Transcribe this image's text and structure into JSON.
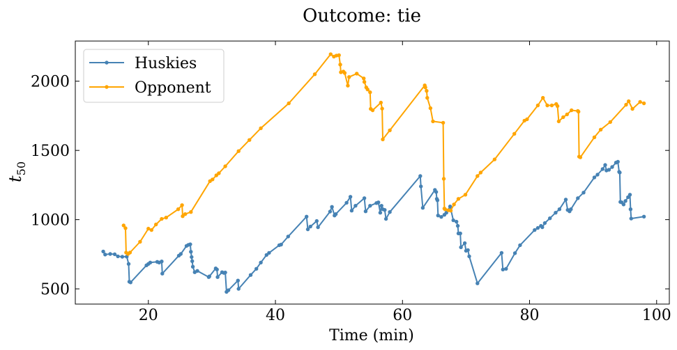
{
  "chart_data": {
    "type": "line",
    "title": "Outcome: tie",
    "xlabel": "Time (min)",
    "ylabel_base": "t",
    "ylabel_sub": "50",
    "xlim": [
      8.5,
      102
    ],
    "ylim": [
      390,
      2290
    ],
    "xticks": [
      20,
      40,
      60,
      80,
      100
    ],
    "yticks": [
      500,
      1000,
      1500,
      2000
    ],
    "grid": false,
    "legend_position": "upper-left",
    "series": [
      {
        "name": "Huskies",
        "color": "#4682b4",
        "points": [
          [
            12.9,
            770
          ],
          [
            13.2,
            748
          ],
          [
            14,
            752
          ],
          [
            14.7,
            750
          ],
          [
            15.2,
            735
          ],
          [
            15.9,
            732
          ],
          [
            16.6,
            733
          ],
          [
            16.9,
            680
          ],
          [
            17.0,
            552
          ],
          [
            17.2,
            547
          ],
          [
            19.7,
            670
          ],
          [
            20.0,
            680
          ],
          [
            20.3,
            690
          ],
          [
            21.4,
            695
          ],
          [
            21.7,
            690
          ],
          [
            22.1,
            698
          ],
          [
            22.2,
            610
          ],
          [
            24.8,
            740
          ],
          [
            25.1,
            752
          ],
          [
            26.0,
            810
          ],
          [
            26.3,
            818
          ],
          [
            26.6,
            822
          ],
          [
            26.7,
            768
          ],
          [
            26.8,
            730
          ],
          [
            26.9,
            700
          ],
          [
            27.0,
            660
          ],
          [
            27.3,
            620
          ],
          [
            27.7,
            630
          ],
          [
            29.5,
            585
          ],
          [
            29.6,
            590
          ],
          [
            30.6,
            648
          ],
          [
            30.8,
            640
          ],
          [
            30.9,
            585
          ],
          [
            31.6,
            620
          ],
          [
            31.9,
            615
          ],
          [
            32.1,
            618
          ],
          [
            32.3,
            478
          ],
          [
            32.6,
            490
          ],
          [
            34.1,
            560
          ],
          [
            34.2,
            500
          ],
          [
            36.1,
            600
          ],
          [
            37.0,
            645
          ],
          [
            37.7,
            690
          ],
          [
            38.6,
            745
          ],
          [
            39.0,
            760
          ],
          [
            40.6,
            815
          ],
          [
            40.9,
            820
          ],
          [
            42.0,
            878
          ],
          [
            44.9,
            1022
          ],
          [
            45.1,
            930
          ],
          [
            45.5,
            950
          ],
          [
            46.5,
            990
          ],
          [
            46.7,
            945
          ],
          [
            48.6,
            1058
          ],
          [
            48.9,
            1092
          ],
          [
            49.3,
            1030
          ],
          [
            49.5,
            1040
          ],
          [
            51.2,
            1122
          ],
          [
            51.8,
            1165
          ],
          [
            52.0,
            1065
          ],
          [
            52.6,
            1100
          ],
          [
            54.0,
            1155
          ],
          [
            54.2,
            1060
          ],
          [
            54.9,
            1100
          ],
          [
            55.9,
            1120
          ],
          [
            56.2,
            1125
          ],
          [
            56.5,
            1050
          ],
          [
            56.7,
            1100
          ],
          [
            56.9,
            1075
          ],
          [
            57.2,
            1070
          ],
          [
            57.4,
            1005
          ],
          [
            58.0,
            1055
          ],
          [
            62.8,
            1315
          ],
          [
            62.9,
            1240
          ],
          [
            63.2,
            1085
          ],
          [
            65.1,
            1215
          ],
          [
            65.3,
            1200
          ],
          [
            65.4,
            1150
          ],
          [
            65.5,
            1140
          ],
          [
            65.6,
            1030
          ],
          [
            66.1,
            1020
          ],
          [
            66.6,
            1035
          ],
          [
            66.9,
            1050
          ],
          [
            67.5,
            1095
          ],
          [
            68.0,
            995
          ],
          [
            68.5,
            985
          ],
          [
            68.7,
            955
          ],
          [
            68.8,
            900
          ],
          [
            69.1,
            900
          ],
          [
            69.2,
            800
          ],
          [
            69.8,
            830
          ],
          [
            70.0,
            775
          ],
          [
            70.3,
            780
          ],
          [
            70.5,
            735
          ],
          [
            71.8,
            540
          ],
          [
            75.6,
            760
          ],
          [
            75.8,
            640
          ],
          [
            76.3,
            645
          ],
          [
            77.7,
            758
          ],
          [
            78.5,
            815
          ],
          [
            80.8,
            925
          ],
          [
            81.3,
            940
          ],
          [
            81.8,
            955
          ],
          [
            82.0,
            945
          ],
          [
            82.4,
            975
          ],
          [
            83.2,
            1010
          ],
          [
            84.1,
            1050
          ],
          [
            84.7,
            1075
          ],
          [
            85.7,
            1145
          ],
          [
            86.0,
            1070
          ],
          [
            86.3,
            1060
          ],
          [
            86.5,
            1075
          ],
          [
            87.6,
            1155
          ],
          [
            88.5,
            1195
          ],
          [
            90.2,
            1305
          ],
          [
            90.7,
            1325
          ],
          [
            91.5,
            1365
          ],
          [
            91.9,
            1395
          ],
          [
            92.1,
            1355
          ],
          [
            92.5,
            1360
          ],
          [
            93.0,
            1380
          ],
          [
            93.6,
            1412
          ],
          [
            93.9,
            1418
          ],
          [
            94.1,
            1345
          ],
          [
            94.2,
            1340
          ],
          [
            94.3,
            1128
          ],
          [
            94.5,
            1125
          ],
          [
            94.8,
            1110
          ],
          [
            95.1,
            1135
          ],
          [
            95.5,
            1162
          ],
          [
            95.8,
            1180
          ],
          [
            95.9,
            1075
          ],
          [
            96.0,
            1008
          ],
          [
            98.0,
            1022
          ]
        ]
      },
      {
        "name": "Opponent",
        "color": "#ffa500",
        "points": [
          [
            16.1,
            958
          ],
          [
            16.4,
            938
          ],
          [
            16.5,
            762
          ],
          [
            16.8,
            752
          ],
          [
            17.1,
            762
          ],
          [
            18.7,
            840
          ],
          [
            20.0,
            935
          ],
          [
            20.5,
            925
          ],
          [
            21.2,
            965
          ],
          [
            22.1,
            1005
          ],
          [
            22.8,
            1015
          ],
          [
            24.7,
            1075
          ],
          [
            25.3,
            1105
          ],
          [
            25.4,
            1025
          ],
          [
            25.8,
            1040
          ],
          [
            26.7,
            1055
          ],
          [
            29.7,
            1278
          ],
          [
            30.1,
            1290
          ],
          [
            30.7,
            1320
          ],
          [
            31.1,
            1335
          ],
          [
            32.1,
            1385
          ],
          [
            34.2,
            1495
          ],
          [
            35.9,
            1575
          ],
          [
            37.7,
            1660
          ],
          [
            42.1,
            1840
          ],
          [
            46.2,
            2050
          ],
          [
            48.7,
            2195
          ],
          [
            49.2,
            2178
          ],
          [
            49.6,
            2185
          ],
          [
            50.0,
            2188
          ],
          [
            50.2,
            2120
          ],
          [
            50.3,
            2065
          ],
          [
            50.7,
            2070
          ],
          [
            50.9,
            2060
          ],
          [
            51.4,
            1968
          ],
          [
            51.6,
            2030
          ],
          [
            52.8,
            2055
          ],
          [
            53.9,
            2020
          ],
          [
            54.0,
            1995
          ],
          [
            54.3,
            1955
          ],
          [
            54.5,
            1940
          ],
          [
            54.9,
            1920
          ],
          [
            55.0,
            1800
          ],
          [
            55.3,
            1790
          ],
          [
            56.6,
            1845
          ],
          [
            56.8,
            1802
          ],
          [
            56.9,
            1580
          ],
          [
            58.0,
            1645
          ],
          [
            63.5,
            1970
          ],
          [
            63.6,
            1955
          ],
          [
            63.8,
            1930
          ],
          [
            63.9,
            1880
          ],
          [
            64.4,
            1805
          ],
          [
            64.8,
            1710
          ],
          [
            66.4,
            1700
          ],
          [
            66.5,
            1295
          ],
          [
            66.6,
            1080
          ],
          [
            66.7,
            1075
          ],
          [
            67.2,
            1068
          ],
          [
            67.6,
            1065
          ],
          [
            68.1,
            1110
          ],
          [
            68.8,
            1150
          ],
          [
            69.9,
            1180
          ],
          [
            71.8,
            1315
          ],
          [
            72.3,
            1340
          ],
          [
            74.5,
            1435
          ],
          [
            77.6,
            1620
          ],
          [
            79.2,
            1715
          ],
          [
            79.6,
            1725
          ],
          [
            81.3,
            1825
          ],
          [
            82.1,
            1880
          ],
          [
            82.8,
            1825
          ],
          [
            83.5,
            1825
          ],
          [
            84.2,
            1835
          ],
          [
            84.4,
            1820
          ],
          [
            84.6,
            1710
          ],
          [
            85.3,
            1740
          ],
          [
            85.9,
            1760
          ],
          [
            86.6,
            1790
          ],
          [
            87.6,
            1785
          ],
          [
            87.7,
            1780
          ],
          [
            87.8,
            1455
          ],
          [
            88.0,
            1450
          ],
          [
            90.2,
            1595
          ],
          [
            91.2,
            1650
          ],
          [
            92.7,
            1705
          ],
          [
            95.2,
            1830
          ],
          [
            95.6,
            1855
          ],
          [
            96.2,
            1800
          ],
          [
            97.4,
            1850
          ],
          [
            98.0,
            1840
          ]
        ]
      }
    ]
  }
}
